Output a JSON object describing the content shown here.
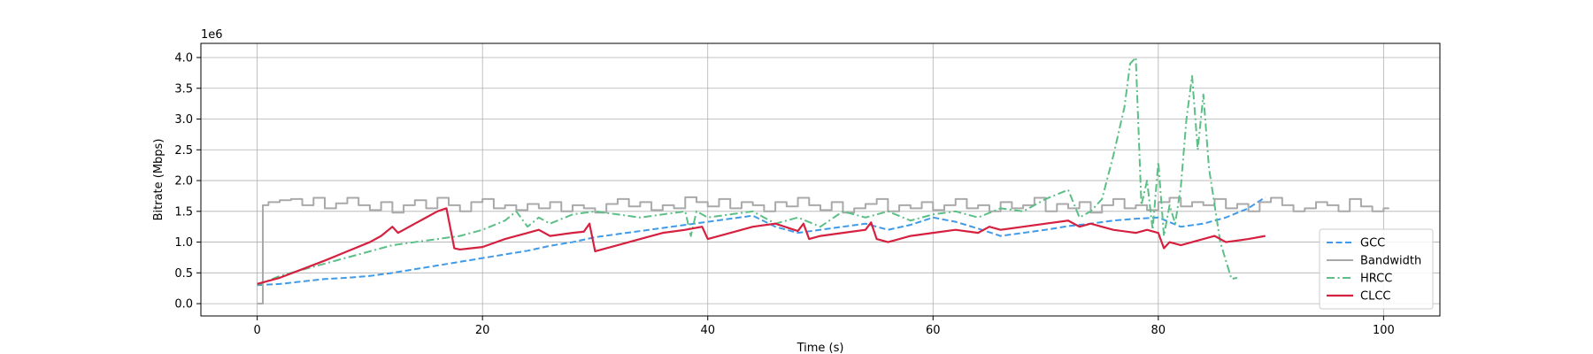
{
  "chart_data": {
    "type": "line",
    "title": "",
    "xlabel": "Time (s)",
    "ylabel": "Bitrate (Mbps)",
    "y_offset_label": "1e6",
    "xlim": [
      -5,
      105
    ],
    "ylim": [
      -200000,
      4230000
    ],
    "xticks": [
      0,
      20,
      40,
      60,
      80,
      100
    ],
    "xtick_labels": [
      "0",
      "20",
      "40",
      "60",
      "80",
      "100"
    ],
    "yticks": [
      0,
      500000,
      1000000,
      1500000,
      2000000,
      2500000,
      3000000,
      3500000,
      4000000
    ],
    "ytick_labels": [
      "0.0",
      "0.5",
      "1.0",
      "1.5",
      "2.0",
      "2.5",
      "3.0",
      "3.5",
      "4.0"
    ],
    "grid": true,
    "legend_position": "lower-right",
    "series": [
      {
        "name": "GCC",
        "color": "#3f9ae8",
        "style": "dashed",
        "x": [
          0,
          2,
          4,
          6,
          8,
          10,
          12,
          14,
          16,
          18,
          20,
          22,
          24,
          26,
          28,
          30,
          32,
          34,
          36,
          38,
          40,
          42,
          44,
          46,
          48,
          50,
          52,
          54,
          56,
          58,
          60,
          62,
          64,
          66,
          68,
          70,
          72,
          74,
          76,
          78,
          80,
          82,
          84,
          86,
          88,
          89.5
        ],
        "y": [
          300000,
          320000,
          360000,
          400000,
          420000,
          450000,
          500000,
          560000,
          620000,
          680000,
          740000,
          800000,
          860000,
          940000,
          1000000,
          1080000,
          1130000,
          1180000,
          1230000,
          1280000,
          1330000,
          1380000,
          1430000,
          1250000,
          1150000,
          1200000,
          1250000,
          1300000,
          1200000,
          1280000,
          1400000,
          1330000,
          1220000,
          1100000,
          1150000,
          1200000,
          1260000,
          1300000,
          1350000,
          1380000,
          1400000,
          1250000,
          1300000,
          1400000,
          1550000,
          1730000
        ]
      },
      {
        "name": "Bandwidth",
        "color": "#a9a9a9",
        "style": "step",
        "x": [
          0,
          0.5,
          1,
          2,
          3,
          4,
          5,
          6,
          7,
          8,
          9,
          10,
          11,
          12,
          13,
          14,
          15,
          16,
          17,
          18,
          19,
          20,
          21,
          22,
          23,
          24,
          25,
          26,
          27,
          28,
          29,
          30,
          31,
          32,
          33,
          34,
          35,
          36,
          37,
          38,
          39,
          40,
          41,
          42,
          43,
          44,
          45,
          46,
          47,
          48,
          49,
          50,
          51,
          52,
          53,
          54,
          55,
          56,
          57,
          58,
          59,
          60,
          61,
          62,
          63,
          64,
          65,
          66,
          67,
          68,
          69,
          70,
          71,
          72,
          73,
          74,
          75,
          76,
          77,
          78,
          79,
          80,
          81,
          82,
          83,
          84,
          85,
          86,
          87,
          88,
          89,
          90,
          91,
          92,
          93,
          94,
          95,
          96,
          97,
          98,
          99,
          100,
          100.5
        ],
        "y": [
          0,
          1600000,
          1650000,
          1680000,
          1700000,
          1600000,
          1720000,
          1550000,
          1630000,
          1720000,
          1600000,
          1520000,
          1650000,
          1480000,
          1600000,
          1680000,
          1550000,
          1720000,
          1600000,
          1500000,
          1650000,
          1700000,
          1550000,
          1600000,
          1520000,
          1620000,
          1550000,
          1650000,
          1500000,
          1600000,
          1550000,
          1480000,
          1620000,
          1700000,
          1580000,
          1650000,
          1520000,
          1600000,
          1550000,
          1730000,
          1650000,
          1580000,
          1700000,
          1550000,
          1650000,
          1600000,
          1500000,
          1650000,
          1580000,
          1720000,
          1600000,
          1520000,
          1650000,
          1480000,
          1550000,
          1620000,
          1700000,
          1500000,
          1600000,
          1550000,
          1650000,
          1520000,
          1600000,
          1700000,
          1550000,
          1600000,
          1500000,
          1650000,
          1550000,
          1600000,
          1720000,
          1500000,
          1620000,
          1550000,
          1650000,
          1480000,
          1600000,
          1700000,
          1550000,
          1600000,
          1520000,
          1650000,
          1720000,
          1580000,
          1650000,
          1600000,
          1700000,
          1550000,
          1620000,
          1500000,
          1650000,
          1720000,
          1600000,
          1500000,
          1550000,
          1650000,
          1600000,
          1500000,
          1700000,
          1580000,
          1500000,
          1550000,
          1550000
        ]
      },
      {
        "name": "HRCC",
        "color": "#5bbf86",
        "style": "dashdot",
        "x": [
          0,
          2,
          4,
          6,
          8,
          10,
          12,
          14,
          16,
          18,
          20,
          22,
          23,
          24,
          25,
          26,
          28,
          30,
          32,
          34,
          36,
          38,
          38.5,
          39,
          40,
          42,
          44,
          46,
          48,
          50,
          52,
          54,
          56,
          58,
          60,
          62,
          64,
          66,
          68,
          70,
          72,
          73,
          74,
          75,
          76,
          77,
          77.5,
          78,
          78.5,
          79,
          79.5,
          80,
          80.5,
          81,
          81.5,
          82,
          82.5,
          83,
          83.5,
          84,
          84.5,
          85,
          85.5,
          86,
          86.5,
          87
        ],
        "y": [
          300000,
          450000,
          550000,
          650000,
          750000,
          850000,
          950000,
          1000000,
          1050000,
          1100000,
          1200000,
          1350000,
          1500000,
          1250000,
          1400000,
          1300000,
          1450000,
          1500000,
          1450000,
          1400000,
          1450000,
          1500000,
          1100000,
          1500000,
          1400000,
          1450000,
          1500000,
          1300000,
          1400000,
          1250000,
          1500000,
          1400000,
          1500000,
          1350000,
          1450000,
          1500000,
          1400000,
          1550000,
          1500000,
          1700000,
          1850000,
          1400000,
          1500000,
          1700000,
          2400000,
          3200000,
          3900000,
          4000000,
          1600000,
          2000000,
          1200000,
          2300000,
          1100000,
          1600000,
          1300000,
          1900000,
          3000000,
          3700000,
          2500000,
          3400000,
          2200000,
          1600000,
          1000000,
          700000,
          400000,
          420000
        ]
      },
      {
        "name": "CLCC",
        "color": "#d62040",
        "style": "solid",
        "x": [
          0,
          2,
          4,
          6,
          8,
          10,
          11,
          12,
          12.5,
          13,
          14,
          15,
          16,
          16.8,
          17.5,
          18,
          19,
          20,
          22,
          24,
          25,
          26,
          28,
          29,
          29.5,
          30,
          32,
          34,
          36,
          38,
          39.5,
          40,
          42,
          44,
          46,
          48,
          48.5,
          49,
          50,
          52,
          54,
          54.5,
          55,
          56,
          58,
          60,
          62,
          64,
          65,
          66,
          68,
          70,
          72,
          73,
          74,
          76,
          78,
          79,
          80,
          80.5,
          81,
          82,
          84,
          85,
          86,
          88,
          89.5
        ],
        "y": [
          320000,
          420000,
          560000,
          700000,
          850000,
          1000000,
          1100000,
          1250000,
          1150000,
          1200000,
          1300000,
          1400000,
          1500000,
          1550000,
          900000,
          880000,
          900000,
          920000,
          1050000,
          1150000,
          1200000,
          1100000,
          1150000,
          1170000,
          1300000,
          850000,
          950000,
          1050000,
          1150000,
          1200000,
          1250000,
          1050000,
          1150000,
          1250000,
          1300000,
          1180000,
          1300000,
          1050000,
          1100000,
          1150000,
          1200000,
          1320000,
          1050000,
          1000000,
          1100000,
          1150000,
          1200000,
          1150000,
          1250000,
          1200000,
          1250000,
          1300000,
          1350000,
          1250000,
          1300000,
          1200000,
          1150000,
          1200000,
          1150000,
          900000,
          1000000,
          950000,
          1050000,
          1100000,
          1000000,
          1050000,
          1100000
        ]
      }
    ]
  }
}
